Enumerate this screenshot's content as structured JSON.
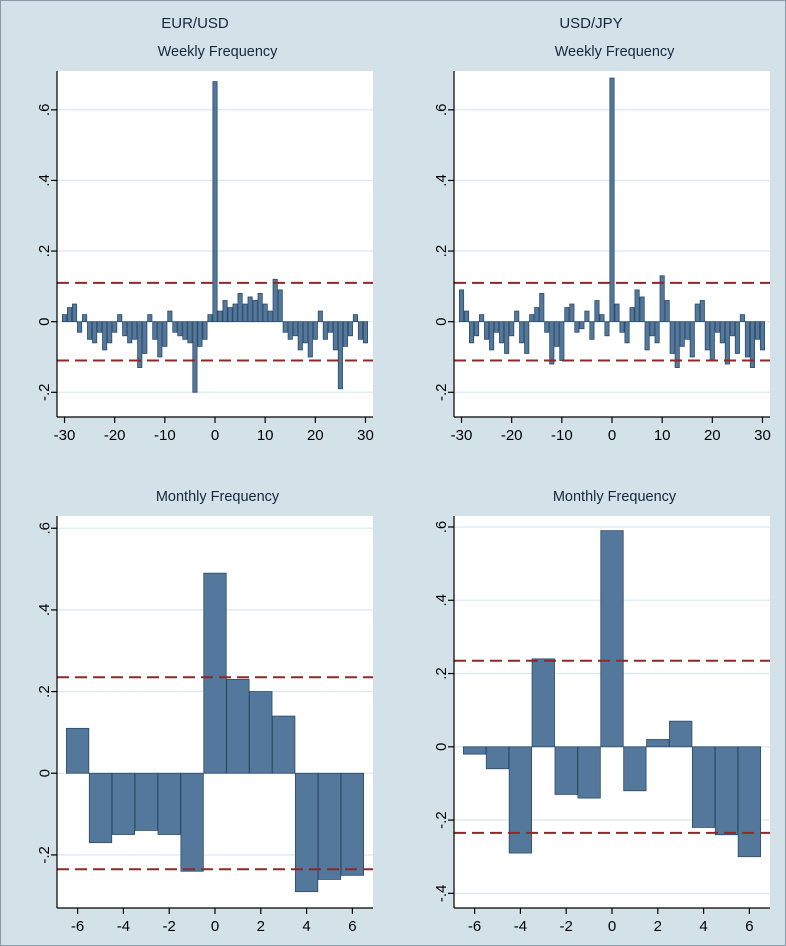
{
  "page": {
    "column_titles": [
      "EUR/USD",
      "USD/JPY"
    ],
    "background": "#d3e1e9"
  },
  "colors": {
    "plot_bg": "#ffffff",
    "grid": "#dcebf3",
    "bar_fill": "#54789c",
    "bar_stroke": "#2c4a66",
    "ci_line": "#8f2727",
    "axis": "#000000",
    "title_text": "#152840"
  },
  "chart_data": [
    {
      "id": "eurusd-weekly",
      "type": "bar",
      "pair": "EUR/USD",
      "title": "Weekly Frequency",
      "xlabel": "",
      "ylabel": "",
      "ci": 0.11,
      "xlim": [
        -31.5,
        31.5
      ],
      "ylim": [
        -0.27,
        0.71
      ],
      "bar_width": 0.85,
      "xticks": [
        -30,
        -20,
        -10,
        0,
        10,
        20,
        30
      ],
      "xtick_labels": [
        "-30",
        "-20",
        "-10",
        "0",
        "10",
        "20",
        "30"
      ],
      "yticks": [
        -0.2,
        0,
        0.2,
        0.4,
        0.6
      ],
      "ytick_labels": [
        "-.2",
        "0",
        ".2",
        ".4",
        ".6"
      ],
      "x": [
        -30,
        -29,
        -28,
        -27,
        -26,
        -25,
        -24,
        -23,
        -22,
        -21,
        -20,
        -19,
        -18,
        -17,
        -16,
        -15,
        -14,
        -13,
        -12,
        -11,
        -10,
        -9,
        -8,
        -7,
        -6,
        -5,
        -4,
        -3,
        -2,
        -1,
        0,
        1,
        2,
        3,
        4,
        5,
        6,
        7,
        8,
        9,
        10,
        11,
        12,
        13,
        14,
        15,
        16,
        17,
        18,
        19,
        20,
        21,
        22,
        23,
        24,
        25,
        26,
        27,
        28,
        29,
        30
      ],
      "values": [
        0.02,
        0.04,
        0.05,
        -0.03,
        0.02,
        -0.05,
        -0.06,
        -0.03,
        -0.08,
        -0.06,
        -0.03,
        0.02,
        -0.04,
        -0.06,
        -0.05,
        -0.13,
        -0.09,
        0.02,
        -0.05,
        -0.1,
        -0.07,
        0.03,
        -0.03,
        -0.04,
        -0.05,
        -0.06,
        -0.2,
        -0.07,
        -0.05,
        0.02,
        0.68,
        0.03,
        0.06,
        0.04,
        0.05,
        0.08,
        0.05,
        0.07,
        0.06,
        0.08,
        0.05,
        0.03,
        0.12,
        0.09,
        -0.03,
        -0.05,
        -0.04,
        -0.08,
        -0.06,
        -0.1,
        -0.05,
        0.03,
        -0.05,
        -0.03,
        -0.08,
        -0.19,
        -0.07,
        -0.04,
        0.02,
        -0.05,
        -0.06
      ]
    },
    {
      "id": "usdjpy-weekly",
      "type": "bar",
      "pair": "USD/JPY",
      "title": "Weekly Frequency",
      "xlabel": "",
      "ylabel": "",
      "ci": 0.11,
      "xlim": [
        -31.5,
        31.5
      ],
      "ylim": [
        -0.27,
        0.71
      ],
      "bar_width": 0.85,
      "xticks": [
        -30,
        -20,
        -10,
        0,
        10,
        20,
        30
      ],
      "xtick_labels": [
        "-30",
        "-20",
        "-10",
        "0",
        "10",
        "20",
        "30"
      ],
      "yticks": [
        -0.2,
        0,
        0.2,
        0.4,
        0.6
      ],
      "ytick_labels": [
        "-.2",
        "0",
        ".2",
        ".4",
        ".6"
      ],
      "x": [
        -30,
        -29,
        -28,
        -27,
        -26,
        -25,
        -24,
        -23,
        -22,
        -21,
        -20,
        -19,
        -18,
        -17,
        -16,
        -15,
        -14,
        -13,
        -12,
        -11,
        -10,
        -9,
        -8,
        -7,
        -6,
        -5,
        -4,
        -3,
        -2,
        -1,
        0,
        1,
        2,
        3,
        4,
        5,
        6,
        7,
        8,
        9,
        10,
        11,
        12,
        13,
        14,
        15,
        16,
        17,
        18,
        19,
        20,
        21,
        22,
        23,
        24,
        25,
        26,
        27,
        28,
        29,
        30
      ],
      "values": [
        0.09,
        0.03,
        -0.06,
        -0.04,
        0.02,
        -0.05,
        -0.08,
        -0.03,
        -0.06,
        -0.09,
        -0.04,
        0.03,
        -0.06,
        -0.09,
        0.02,
        0.04,
        0.08,
        -0.03,
        -0.12,
        -0.07,
        -0.11,
        0.04,
        0.05,
        -0.03,
        -0.02,
        0.03,
        -0.05,
        0.06,
        0.02,
        -0.04,
        0.69,
        0.05,
        -0.03,
        -0.06,
        0.04,
        0.09,
        0.07,
        -0.08,
        -0.04,
        -0.06,
        0.13,
        0.06,
        -0.09,
        -0.13,
        -0.07,
        -0.05,
        -0.1,
        0.05,
        0.06,
        -0.08,
        -0.11,
        -0.03,
        -0.06,
        -0.12,
        -0.04,
        -0.09,
        0.02,
        -0.1,
        -0.13,
        -0.05,
        -0.08
      ]
    },
    {
      "id": "eurusd-monthly",
      "type": "bar",
      "pair": "EUR/USD",
      "title": "Monthly Frequency",
      "xlabel": "",
      "ylabel": "",
      "ci": 0.235,
      "xlim": [
        -6.9,
        6.9
      ],
      "ylim": [
        -0.33,
        0.63
      ],
      "bar_width": 0.98,
      "xticks": [
        -6,
        -4,
        -2,
        0,
        2,
        4,
        6
      ],
      "xtick_labels": [
        "-6",
        "-4",
        "-2",
        "0",
        "2",
        "4",
        "6"
      ],
      "yticks": [
        -0.2,
        0,
        0.2,
        0.4,
        0.6
      ],
      "ytick_labels": [
        "-.2",
        "0",
        ".2",
        ".4",
        ".6"
      ],
      "x": [
        -6,
        -5,
        -4,
        -3,
        -2,
        -1,
        0,
        1,
        2,
        3,
        4,
        5,
        6
      ],
      "values": [
        0.11,
        -0.17,
        -0.15,
        -0.14,
        -0.15,
        -0.24,
        0.49,
        0.23,
        0.2,
        0.14,
        -0.29,
        -0.26,
        -0.25
      ]
    },
    {
      "id": "usdjpy-monthly",
      "type": "bar",
      "pair": "USD/JPY",
      "title": "Monthly Frequency",
      "xlabel": "",
      "ylabel": "",
      "ci": 0.235,
      "xlim": [
        -6.9,
        6.9
      ],
      "ylim": [
        -0.44,
        0.63
      ],
      "bar_width": 0.98,
      "xticks": [
        -6,
        -4,
        -2,
        0,
        2,
        4,
        6
      ],
      "xtick_labels": [
        "-6",
        "-4",
        "-2",
        "0",
        "2",
        "4",
        "6"
      ],
      "yticks": [
        -0.4,
        -0.2,
        0,
        0.2,
        0.4,
        0.6
      ],
      "ytick_labels": [
        "-.4",
        "-.2",
        "0",
        ".2",
        ".4",
        ".6"
      ],
      "x": [
        -6,
        -5,
        -4,
        -3,
        -2,
        -1,
        0,
        1,
        2,
        3,
        4,
        5,
        6
      ],
      "values": [
        -0.02,
        -0.06,
        -0.29,
        0.24,
        -0.13,
        -0.14,
        0.59,
        -0.12,
        0.02,
        0.07,
        -0.22,
        -0.24,
        -0.3
      ]
    }
  ]
}
